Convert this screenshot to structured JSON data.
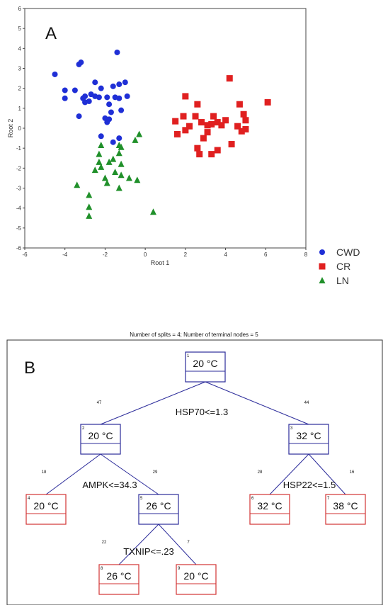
{
  "scatter": {
    "panel_label": "A",
    "xlabel": "Root 1",
    "ylabel": "Root 2",
    "xlim": [
      -6,
      8
    ],
    "ylim": [
      -6,
      6
    ],
    "x_ticks": [
      "-6",
      "-4",
      "-2",
      "0",
      "2",
      "4",
      "6",
      "8"
    ],
    "y_ticks": [
      "6",
      "5",
      "4",
      "3",
      "2",
      "1",
      "0",
      "-1",
      "-2",
      "-3",
      "-4",
      "-5",
      "-6"
    ],
    "legend": [
      "CWD",
      "CR",
      "LN"
    ]
  },
  "chart_data": [
    {
      "type": "scatter",
      "xlabel": "Root 1",
      "ylabel": "Root 2",
      "xlim": [
        -6,
        8
      ],
      "ylim": [
        -6,
        6
      ],
      "grid": false,
      "legend_position": "bottom-right, outside",
      "series": [
        {
          "name": "CWD",
          "color": "#1f2fd6",
          "marker": "circle",
          "points": [
            [
              -1.4,
              3.8
            ],
            [
              -3.2,
              3.3
            ],
            [
              -3.3,
              3.2
            ],
            [
              -4.5,
              2.7
            ],
            [
              -2.5,
              2.3
            ],
            [
              -1.0,
              2.3
            ],
            [
              -1.3,
              2.2
            ],
            [
              -1.6,
              2.1
            ],
            [
              -2.2,
              2.0
            ],
            [
              -4.0,
              1.9
            ],
            [
              -3.5,
              1.9
            ],
            [
              -2.7,
              1.7
            ],
            [
              -3.0,
              1.6
            ],
            [
              -4.0,
              1.5
            ],
            [
              -3.1,
              1.5
            ],
            [
              -2.5,
              1.6
            ],
            [
              -2.3,
              1.55
            ],
            [
              -1.9,
              1.55
            ],
            [
              -1.5,
              1.55
            ],
            [
              -1.3,
              1.5
            ],
            [
              -0.9,
              1.6
            ],
            [
              -2.8,
              1.35
            ],
            [
              -3.0,
              1.3
            ],
            [
              -1.8,
              1.2
            ],
            [
              -1.7,
              0.8
            ],
            [
              -1.2,
              0.9
            ],
            [
              -2.0,
              0.5
            ],
            [
              -1.8,
              0.45
            ],
            [
              -1.9,
              0.3
            ],
            [
              -3.3,
              0.6
            ],
            [
              -2.2,
              -0.4
            ],
            [
              -1.3,
              -0.5
            ],
            [
              -1.6,
              -0.7
            ]
          ]
        },
        {
          "name": "CR",
          "color": "#e02020",
          "marker": "square",
          "points": [
            [
              4.2,
              2.5
            ],
            [
              2.0,
              1.6
            ],
            [
              6.1,
              1.3
            ],
            [
              4.7,
              1.2
            ],
            [
              2.6,
              1.2
            ],
            [
              1.9,
              0.6
            ],
            [
              2.5,
              0.6
            ],
            [
              3.4,
              0.6
            ],
            [
              4.9,
              0.7
            ],
            [
              1.5,
              0.35
            ],
            [
              4.0,
              0.4
            ],
            [
              3.6,
              0.3
            ],
            [
              2.8,
              0.3
            ],
            [
              2.2,
              0.1
            ],
            [
              3.1,
              0.15
            ],
            [
              3.3,
              0.2
            ],
            [
              3.8,
              0.15
            ],
            [
              4.6,
              0.1
            ],
            [
              5.0,
              0.4
            ],
            [
              2.0,
              -0.1
            ],
            [
              1.6,
              -0.3
            ],
            [
              3.1,
              -0.2
            ],
            [
              5.0,
              -0.05
            ],
            [
              4.8,
              -0.15
            ],
            [
              2.6,
              -1.0
            ],
            [
              3.6,
              -1.1
            ],
            [
              2.7,
              -1.3
            ],
            [
              3.3,
              -1.3
            ],
            [
              2.9,
              -0.5
            ],
            [
              4.3,
              -0.8
            ]
          ]
        },
        {
          "name": "LN",
          "color": "#20902a",
          "marker": "triangle",
          "points": [
            [
              -0.3,
              -0.3
            ],
            [
              -0.5,
              -0.6
            ],
            [
              -1.3,
              -0.85
            ],
            [
              -1.2,
              -0.95
            ],
            [
              -2.2,
              -0.85
            ],
            [
              -1.3,
              -1.25
            ],
            [
              -2.3,
              -1.3
            ],
            [
              -1.6,
              -1.55
            ],
            [
              -1.8,
              -1.7
            ],
            [
              -1.2,
              -1.8
            ],
            [
              -2.3,
              -1.7
            ],
            [
              -2.2,
              -1.95
            ],
            [
              -2.5,
              -2.1
            ],
            [
              -1.5,
              -2.2
            ],
            [
              -1.2,
              -2.35
            ],
            [
              -0.8,
              -2.5
            ],
            [
              -0.4,
              -2.6
            ],
            [
              -2.0,
              -2.5
            ],
            [
              -1.9,
              -2.75
            ],
            [
              -3.4,
              -2.85
            ],
            [
              -1.3,
              -3.0
            ],
            [
              -2.8,
              -3.35
            ],
            [
              -2.8,
              -3.95
            ],
            [
              -2.8,
              -4.4
            ],
            [
              0.4,
              -4.2
            ]
          ]
        }
      ]
    },
    {
      "type": "diagram",
      "panel_label": "B",
      "caption": "Number of splits = 4; Number of terminal nodes = 5",
      "nodes": [
        {
          "id": "1",
          "label": "20 °C",
          "terminal": false
        },
        {
          "id": "2",
          "label": "20 °C",
          "terminal": false
        },
        {
          "id": "3",
          "label": "32 °C",
          "terminal": false
        },
        {
          "id": "4",
          "label": "20 °C",
          "terminal": true
        },
        {
          "id": "5",
          "label": "26 °C",
          "terminal": false
        },
        {
          "id": "6",
          "label": "32 °C",
          "terminal": true
        },
        {
          "id": "7",
          "label": "38 °C",
          "terminal": true
        },
        {
          "id": "8",
          "label": "26 °C",
          "terminal": true
        },
        {
          "id": "9",
          "label": "20 °C",
          "terminal": true
        }
      ],
      "splits": [
        {
          "node": "1",
          "rule": "HSP70<=1.3",
          "left_count": "47",
          "right_count": "44"
        },
        {
          "node": "2",
          "rule": "AMPK<=34.3",
          "left_count": "18",
          "right_count": "29"
        },
        {
          "node": "3",
          "rule": "HSP22<=1.5",
          "left_count": "28",
          "right_count": "16"
        },
        {
          "node": "5",
          "rule": "TXNIP<=.23",
          "left_count": "22",
          "right_count": "7"
        }
      ]
    }
  ]
}
